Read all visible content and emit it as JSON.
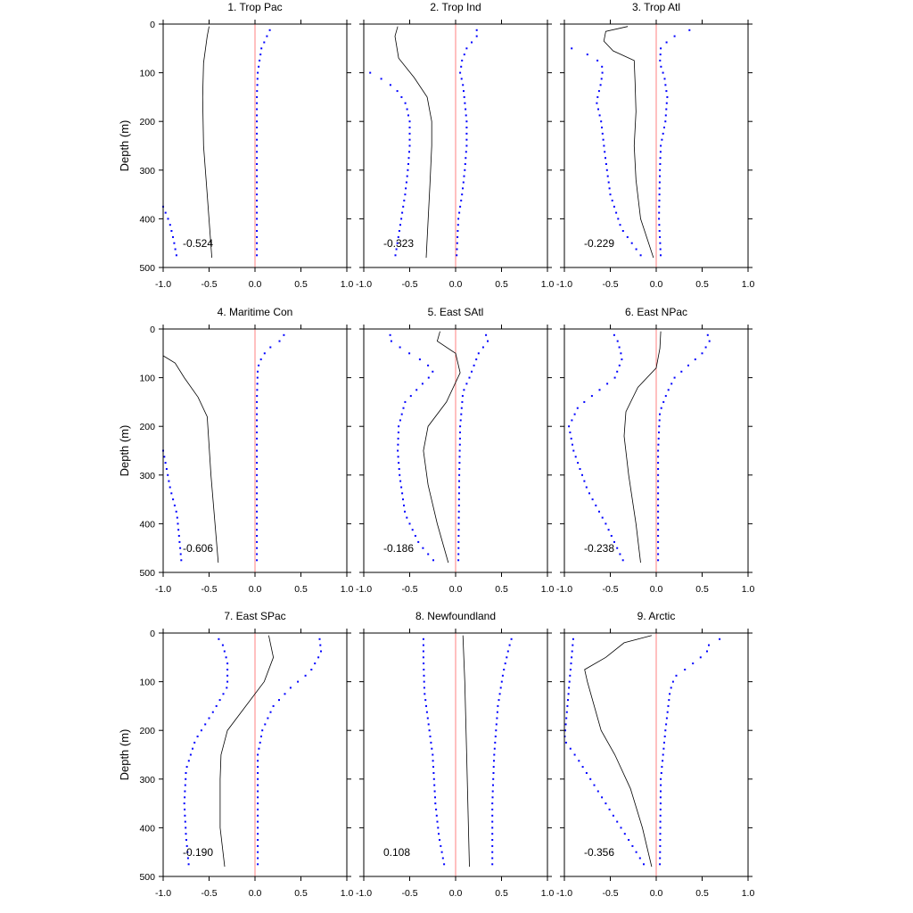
{
  "figure": {
    "ylabel": "Depth (m)",
    "colors": {
      "frame": "#000000",
      "mean_line": "#000000",
      "bounds": "#0000ff",
      "zero_line": "#ff8080"
    }
  },
  "chart_data": [
    {
      "type": "line",
      "title": "1. Trop Pac",
      "stat": "-0.524",
      "xlim": [
        -1.0,
        1.0
      ],
      "ylim": [
        500,
        0
      ],
      "xticks": [
        "-1.0",
        "-0.5",
        "0.0",
        "0.5",
        "1.0"
      ],
      "yticks": [
        "0",
        "100",
        "200",
        "300",
        "400",
        "500"
      ],
      "mean": [
        [
          -0.5,
          5
        ],
        [
          -0.52,
          25
        ],
        [
          -0.56,
          80
        ],
        [
          -0.57,
          150
        ],
        [
          -0.56,
          250
        ],
        [
          -0.52,
          350
        ],
        [
          -0.47,
          480
        ]
      ],
      "upper": [
        [
          0.18,
          5
        ],
        [
          0.13,
          25
        ],
        [
          0.07,
          50
        ],
        [
          0.05,
          75
        ],
        [
          0.03,
          100
        ],
        [
          0.02,
          150
        ],
        [
          0.02,
          300
        ],
        [
          0.02,
          480
        ]
      ],
      "lower": [
        [
          -1.0,
          375
        ],
        [
          -0.93,
          408
        ],
        [
          -0.89,
          440
        ],
        [
          -0.85,
          480
        ]
      ]
    },
    {
      "type": "line",
      "title": "2. Trop Ind",
      "stat": "-0.323",
      "xlim": [
        -1.0,
        1.0
      ],
      "ylim": [
        500,
        0
      ],
      "xticks": [
        "-1.0",
        "-0.5",
        "0.0",
        "0.5",
        "1.0"
      ],
      "yticks": [
        "0",
        "100",
        "200",
        "300",
        "400",
        "500"
      ],
      "mean": [
        [
          -0.63,
          5
        ],
        [
          -0.66,
          25
        ],
        [
          -0.62,
          70
        ],
        [
          -0.45,
          110
        ],
        [
          -0.31,
          150
        ],
        [
          -0.26,
          200
        ],
        [
          -0.26,
          250
        ],
        [
          -0.28,
          330
        ],
        [
          -0.32,
          480
        ]
      ],
      "upper": [
        [
          0.23,
          5
        ],
        [
          0.23,
          25
        ],
        [
          0.12,
          50
        ],
        [
          0.07,
          75
        ],
        [
          0.05,
          100
        ],
        [
          0.08,
          125
        ],
        [
          0.1,
          160
        ],
        [
          0.12,
          200
        ],
        [
          0.12,
          250
        ],
        [
          0.1,
          300
        ],
        [
          0.07,
          350
        ],
        [
          0.03,
          400
        ],
        [
          0.01,
          480
        ]
      ],
      "lower": [
        [
          -0.98,
          95
        ],
        [
          -0.88,
          105
        ],
        [
          -0.74,
          120
        ],
        [
          -0.62,
          140
        ],
        [
          -0.54,
          165
        ],
        [
          -0.5,
          200
        ],
        [
          -0.5,
          250
        ],
        [
          -0.52,
          300
        ],
        [
          -0.55,
          350
        ],
        [
          -0.6,
          410
        ],
        [
          -0.66,
          480
        ]
      ]
    },
    {
      "type": "line",
      "title": "3. Trop Atl",
      "stat": "-0.229",
      "xlim": [
        -1.0,
        1.0
      ],
      "ylim": [
        500,
        0
      ],
      "xticks": [
        "-1.0",
        "-0.5",
        "0.0",
        "0.5",
        "1.0"
      ],
      "yticks": [
        "0",
        "100",
        "200",
        "300",
        "400",
        "500"
      ],
      "mean": [
        [
          -0.31,
          5
        ],
        [
          -0.55,
          15
        ],
        [
          -0.57,
          35
        ],
        [
          -0.47,
          55
        ],
        [
          -0.24,
          75
        ],
        [
          -0.23,
          120
        ],
        [
          -0.22,
          180
        ],
        [
          -0.24,
          250
        ],
        [
          -0.22,
          320
        ],
        [
          -0.17,
          400
        ],
        [
          -0.03,
          480
        ]
      ],
      "upper": [
        [
          0.55,
          5
        ],
        [
          0.3,
          15
        ],
        [
          0.15,
          30
        ],
        [
          0.05,
          50
        ],
        [
          0.04,
          80
        ],
        [
          0.09,
          110
        ],
        [
          0.12,
          150
        ],
        [
          0.1,
          200
        ],
        [
          0.05,
          250
        ],
        [
          0.04,
          300
        ],
        [
          0.03,
          400
        ],
        [
          0.05,
          480
        ]
      ],
      "lower": [
        [
          -1.0,
          45
        ],
        [
          -0.84,
          55
        ],
        [
          -0.66,
          70
        ],
        [
          -0.58,
          90
        ],
        [
          -0.6,
          120
        ],
        [
          -0.65,
          160
        ],
        [
          -0.6,
          200
        ],
        [
          -0.55,
          280
        ],
        [
          -0.5,
          350
        ],
        [
          -0.38,
          420
        ],
        [
          -0.15,
          480
        ]
      ]
    },
    {
      "type": "line",
      "title": "4. Maritime Con",
      "stat": "-0.606",
      "xlim": [
        -1.0,
        1.0
      ],
      "ylim": [
        500,
        0
      ],
      "xticks": [
        "-1.0",
        "-0.5",
        "0.0",
        "0.5",
        "1.0"
      ],
      "yticks": [
        "0",
        "100",
        "200",
        "300",
        "400",
        "500"
      ],
      "mean": [
        [
          -1.0,
          55
        ],
        [
          -0.87,
          70
        ],
        [
          -0.77,
          100
        ],
        [
          -0.62,
          140
        ],
        [
          -0.52,
          180
        ],
        [
          -0.48,
          300
        ],
        [
          -0.4,
          480
        ]
      ],
      "upper": [
        [
          0.32,
          5
        ],
        [
          0.31,
          20
        ],
        [
          0.18,
          35
        ],
        [
          0.08,
          55
        ],
        [
          0.03,
          80
        ],
        [
          0.02,
          150
        ],
        [
          0.02,
          300
        ],
        [
          0.02,
          480
        ]
      ],
      "lower": [
        [
          -1.0,
          250
        ],
        [
          -0.97,
          280
        ],
        [
          -0.92,
          330
        ],
        [
          -0.85,
          380
        ],
        [
          -0.82,
          440
        ],
        [
          -0.8,
          480
        ]
      ]
    },
    {
      "type": "line",
      "title": "5. East SAtl",
      "stat": "-0.186",
      "xlim": [
        -1.0,
        1.0
      ],
      "ylim": [
        500,
        0
      ],
      "xticks": [
        "-1.0",
        "-0.5",
        "0.0",
        "0.5",
        "1.0"
      ],
      "yticks": [
        "0",
        "100",
        "200",
        "300",
        "400",
        "500"
      ],
      "mean": [
        [
          -0.17,
          5
        ],
        [
          -0.2,
          25
        ],
        [
          0.0,
          50
        ],
        [
          0.05,
          90
        ],
        [
          -0.1,
          150
        ],
        [
          -0.3,
          200
        ],
        [
          -0.35,
          250
        ],
        [
          -0.3,
          320
        ],
        [
          -0.2,
          400
        ],
        [
          -0.08,
          480
        ]
      ],
      "upper": [
        [
          0.32,
          5
        ],
        [
          0.35,
          25
        ],
        [
          0.25,
          50
        ],
        [
          0.2,
          75
        ],
        [
          0.15,
          100
        ],
        [
          0.08,
          130
        ],
        [
          0.05,
          200
        ],
        [
          0.04,
          300
        ],
        [
          0.03,
          480
        ]
      ],
      "lower": [
        [
          -0.72,
          5
        ],
        [
          -0.7,
          25
        ],
        [
          -0.55,
          45
        ],
        [
          -0.32,
          70
        ],
        [
          -0.24,
          90
        ],
        [
          -0.4,
          120
        ],
        [
          -0.55,
          150
        ],
        [
          -0.62,
          200
        ],
        [
          -0.63,
          250
        ],
        [
          -0.61,
          300
        ],
        [
          -0.55,
          380
        ],
        [
          -0.4,
          440
        ],
        [
          -0.22,
          480
        ]
      ]
    },
    {
      "type": "line",
      "title": "6. East NPac",
      "stat": "-0.238",
      "xlim": [
        -1.0,
        1.0
      ],
      "ylim": [
        500,
        0
      ],
      "xticks": [
        "-1.0",
        "-0.5",
        "0.0",
        "0.5",
        "1.0"
      ],
      "yticks": [
        "0",
        "100",
        "200",
        "300",
        "400",
        "500"
      ],
      "mean": [
        [
          0.05,
          5
        ],
        [
          0.04,
          40
        ],
        [
          0.0,
          80
        ],
        [
          -0.2,
          120
        ],
        [
          -0.33,
          170
        ],
        [
          -0.35,
          220
        ],
        [
          -0.3,
          300
        ],
        [
          -0.22,
          400
        ],
        [
          -0.17,
          480
        ]
      ],
      "upper": [
        [
          0.55,
          5
        ],
        [
          0.58,
          25
        ],
        [
          0.5,
          50
        ],
        [
          0.35,
          75
        ],
        [
          0.2,
          100
        ],
        [
          0.12,
          130
        ],
        [
          0.04,
          170
        ],
        [
          0.02,
          250
        ],
        [
          0.02,
          400
        ],
        [
          0.02,
          480
        ]
      ],
      "lower": [
        [
          -0.48,
          5
        ],
        [
          -0.42,
          25
        ],
        [
          -0.37,
          60
        ],
        [
          -0.45,
          100
        ],
        [
          -0.65,
          130
        ],
        [
          -0.85,
          160
        ],
        [
          -0.95,
          200
        ],
        [
          -0.9,
          250
        ],
        [
          -0.75,
          330
        ],
        [
          -0.55,
          400
        ],
        [
          -0.35,
          480
        ]
      ]
    },
    {
      "type": "line",
      "title": "7. East SPac",
      "stat": "-0.190",
      "xlim": [
        -1.0,
        1.0
      ],
      "ylim": [
        500,
        0
      ],
      "xticks": [
        "-1.0",
        "-0.5",
        "0.0",
        "0.5",
        "1.0"
      ],
      "yticks": [
        "0",
        "100",
        "200",
        "300",
        "400",
        "500"
      ],
      "mean": [
        [
          0.15,
          5
        ],
        [
          0.2,
          50
        ],
        [
          0.1,
          100
        ],
        [
          -0.1,
          150
        ],
        [
          -0.3,
          200
        ],
        [
          -0.37,
          250
        ],
        [
          -0.38,
          300
        ],
        [
          -0.38,
          400
        ],
        [
          -0.33,
          480
        ]
      ],
      "upper": [
        [
          0.7,
          5
        ],
        [
          0.72,
          40
        ],
        [
          0.6,
          80
        ],
        [
          0.4,
          110
        ],
        [
          0.2,
          150
        ],
        [
          0.08,
          200
        ],
        [
          0.03,
          250
        ],
        [
          0.03,
          480
        ]
      ],
      "lower": [
        [
          -0.42,
          5
        ],
        [
          -0.35,
          25
        ],
        [
          -0.3,
          60
        ],
        [
          -0.3,
          110
        ],
        [
          -0.45,
          160
        ],
        [
          -0.65,
          220
        ],
        [
          -0.75,
          280
        ],
        [
          -0.77,
          350
        ],
        [
          -0.75,
          420
        ],
        [
          -0.72,
          480
        ]
      ]
    },
    {
      "type": "line",
      "title": "8. Newfoundland",
      "stat": "0.108",
      "xlim": [
        -1.0,
        1.0
      ],
      "ylim": [
        500,
        0
      ],
      "xticks": [
        "-1.0",
        "-0.5",
        "0.0",
        "0.5",
        "1.0"
      ],
      "yticks": [
        "0",
        "100",
        "200",
        "300",
        "400",
        "500"
      ],
      "mean": [
        [
          0.08,
          5
        ],
        [
          0.1,
          100
        ],
        [
          0.12,
          250
        ],
        [
          0.14,
          400
        ],
        [
          0.15,
          480
        ]
      ],
      "upper": [
        [
          0.62,
          5
        ],
        [
          0.58,
          30
        ],
        [
          0.52,
          80
        ],
        [
          0.46,
          150
        ],
        [
          0.42,
          250
        ],
        [
          0.4,
          350
        ],
        [
          0.4,
          480
        ]
      ],
      "lower": [
        [
          -0.35,
          5
        ],
        [
          -0.35,
          50
        ],
        [
          -0.34,
          120
        ],
        [
          -0.3,
          180
        ],
        [
          -0.25,
          250
        ],
        [
          -0.22,
          350
        ],
        [
          -0.18,
          420
        ],
        [
          -0.12,
          480
        ]
      ]
    },
    {
      "type": "line",
      "title": "9. Arctic",
      "stat": "-0.356",
      "xlim": [
        -1.0,
        1.0
      ],
      "ylim": [
        500,
        0
      ],
      "xticks": [
        "-1.0",
        "-0.5",
        "0.0",
        "0.5",
        "1.0"
      ],
      "yticks": [
        "0",
        "100",
        "200",
        "300",
        "400",
        "500"
      ],
      "mean": [
        [
          -0.05,
          5
        ],
        [
          -0.35,
          20
        ],
        [
          -0.55,
          50
        ],
        [
          -0.78,
          75
        ],
        [
          -0.75,
          100
        ],
        [
          -0.6,
          200
        ],
        [
          -0.45,
          250
        ],
        [
          -0.28,
          320
        ],
        [
          -0.15,
          400
        ],
        [
          -0.05,
          480
        ]
      ],
      "upper": [
        [
          0.8,
          5
        ],
        [
          0.58,
          20
        ],
        [
          0.55,
          40
        ],
        [
          0.35,
          70
        ],
        [
          0.2,
          90
        ],
        [
          0.15,
          120
        ],
        [
          0.1,
          200
        ],
        [
          0.05,
          300
        ],
        [
          0.04,
          480
        ]
      ],
      "lower": [
        [
          -0.9,
          5
        ],
        [
          -1.0,
          220
        ],
        [
          -0.85,
          260
        ],
        [
          -0.65,
          320
        ],
        [
          -0.45,
          380
        ],
        [
          -0.25,
          440
        ],
        [
          -0.12,
          480
        ]
      ]
    }
  ]
}
